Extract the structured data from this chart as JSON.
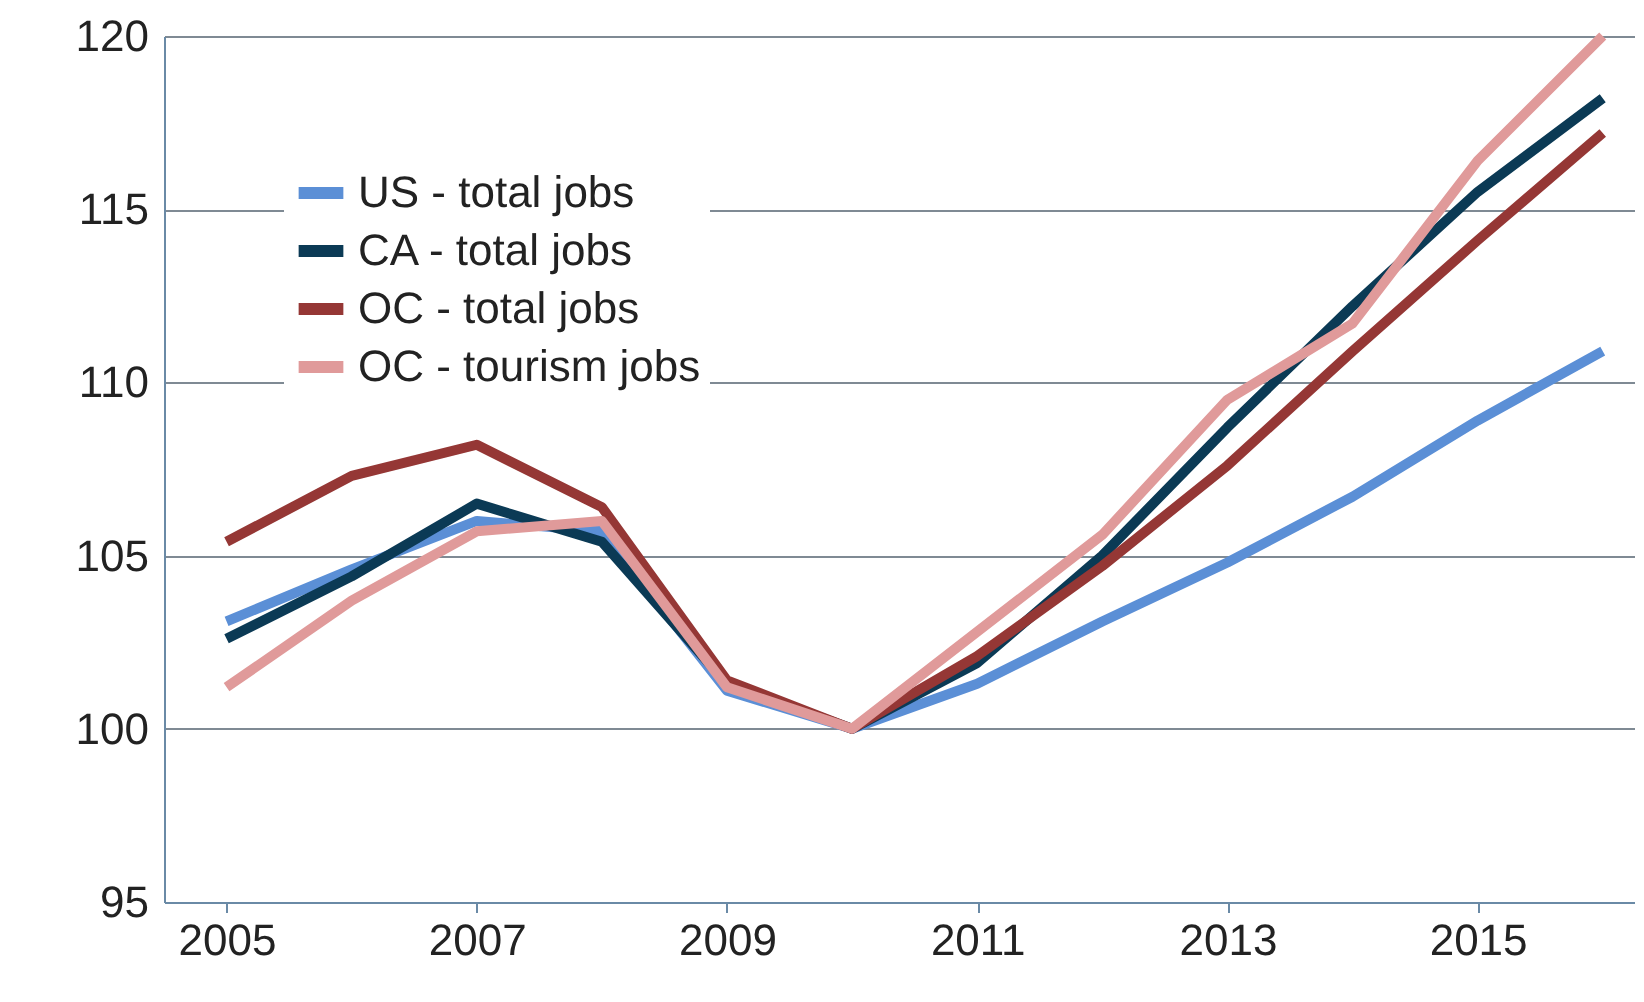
{
  "chart_data": {
    "type": "line",
    "x": [
      2005,
      2006,
      2007,
      2008,
      2009,
      2010,
      2011,
      2012,
      2013,
      2014,
      2015,
      2016
    ],
    "series": [
      {
        "name": "US - total jobs",
        "color": "#5b8fd6",
        "values": [
          103.1,
          104.6,
          106.0,
          105.7,
          101.1,
          100,
          101.3,
          103.1,
          104.8,
          106.7,
          108.9,
          110.9
        ]
      },
      {
        "name": "CA - total jobs",
        "color": "#0b3a55",
        "values": [
          102.6,
          104.4,
          106.5,
          105.4,
          101.3,
          100,
          101.9,
          105.0,
          108.7,
          112.2,
          115.5,
          118.2
        ]
      },
      {
        "name": "OC - total jobs",
        "color": "#953735",
        "values": [
          105.4,
          107.3,
          108.2,
          106.4,
          101.4,
          100,
          102.1,
          104.7,
          107.6,
          110.9,
          114.1,
          117.2
        ]
      },
      {
        "name": "OC - tourism jobs",
        "color": "#e09a9a",
        "values": [
          101.2,
          103.7,
          105.7,
          106.0,
          101.2,
          100,
          102.8,
          105.6,
          109.5,
          111.7,
          116.4,
          120.0
        ]
      }
    ],
    "xlim": [
      2004.5,
      2016.25
    ],
    "xticks": [
      2005,
      2007,
      2009,
      2011,
      2013,
      2015
    ],
    "ylim": [
      95,
      120
    ],
    "yticks": [
      95,
      100,
      105,
      110,
      115,
      120
    ],
    "grid": "y",
    "legend": "top left",
    "marker": "none",
    "line_style": "solid"
  }
}
